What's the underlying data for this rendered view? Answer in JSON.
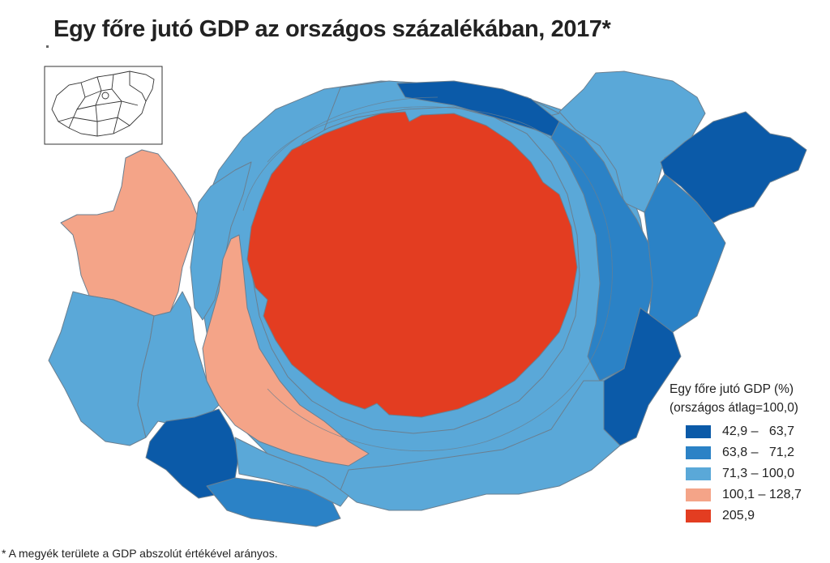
{
  "title": "Egy főre jutó GDP az országos százalékában, 2017*",
  "footnote": "* A megyék területe a GDP abszolút értékével arányos.",
  "legend": {
    "title": "Egy főre jutó GDP  (%)",
    "subtitle": "(országos átlag=100,0)",
    "classes": [
      {
        "label": "42,9 –   63,7",
        "color": "#0b5aa8"
      },
      {
        "label": "63,8 –   71,2",
        "color": "#2b82c6"
      },
      {
        "label": "71,3 – 100,0",
        "color": "#5aa8d8"
      },
      {
        "label": "100,1 – 128,7",
        "color": "#f4a488"
      },
      {
        "label": "205,9",
        "color": "#e33d21"
      }
    ]
  },
  "inset": {
    "icon": "hungary-outline-icon"
  }
}
